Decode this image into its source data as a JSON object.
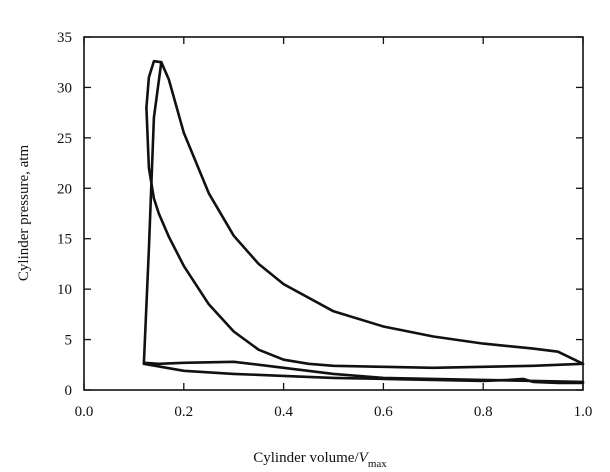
{
  "chart_data": {
    "type": "line",
    "title": "",
    "xlabel": {
      "main": "Cylinder volume/",
      "var": "V",
      "sub": "max"
    },
    "ylabel": "Cylinder pressure, atm",
    "xlim": [
      0.0,
      1.0
    ],
    "ylim": [
      0,
      35
    ],
    "xticks": [
      "0.0",
      "0.2",
      "0.4",
      "0.6",
      "0.8",
      "1.0"
    ],
    "yticks": [
      "0",
      "5",
      "10",
      "15",
      "20",
      "25",
      "30",
      "35"
    ],
    "grid": false,
    "legend": "none",
    "line_color": "#111111",
    "series": [
      {
        "x": [
          0.12,
          0.2,
          0.3,
          0.4,
          0.5,
          0.6,
          0.7,
          0.8,
          0.85,
          0.88,
          0.9,
          0.95,
          1.0
        ],
        "y": [
          2.6,
          1.9,
          1.6,
          1.4,
          1.2,
          1.1,
          1.0,
          0.9,
          1.0,
          1.1,
          0.8,
          0.7,
          0.7
        ]
      },
      {
        "x": [
          1.0,
          0.9,
          0.8,
          0.7,
          0.6,
          0.5,
          0.4,
          0.3,
          0.2,
          0.15,
          0.12,
          0.12
        ],
        "y": [
          0.8,
          0.9,
          1.0,
          1.1,
          1.2,
          1.6,
          2.2,
          2.8,
          2.7,
          2.6,
          2.7,
          2.6
        ]
      },
      {
        "x": [
          0.12,
          0.13,
          0.14,
          0.155,
          0.17,
          0.2,
          0.25,
          0.3,
          0.35,
          0.4,
          0.5,
          0.6,
          0.7,
          0.8,
          0.9,
          0.95,
          1.0
        ],
        "y": [
          2.7,
          14.0,
          27.0,
          32.5,
          30.8,
          25.5,
          19.5,
          15.3,
          12.5,
          10.5,
          7.8,
          6.3,
          5.3,
          4.6,
          4.1,
          3.8,
          2.6
        ]
      },
      {
        "x": [
          1.0,
          0.95,
          0.9,
          0.8,
          0.7,
          0.6,
          0.5,
          0.45,
          0.4,
          0.35,
          0.3,
          0.25,
          0.2,
          0.17,
          0.15,
          0.14,
          0.13,
          0.125
        ],
        "y": [
          2.6,
          2.5,
          2.4,
          2.3,
          2.2,
          2.3,
          2.4,
          2.6,
          3.0,
          4.0,
          5.8,
          8.5,
          12.3,
          15.2,
          17.5,
          19.0,
          22.0,
          28.0
        ]
      },
      {
        "x": [
          0.125,
          0.13,
          0.14,
          0.155
        ],
        "y": [
          28.0,
          31.0,
          32.6,
          32.5
        ]
      }
    ]
  }
}
